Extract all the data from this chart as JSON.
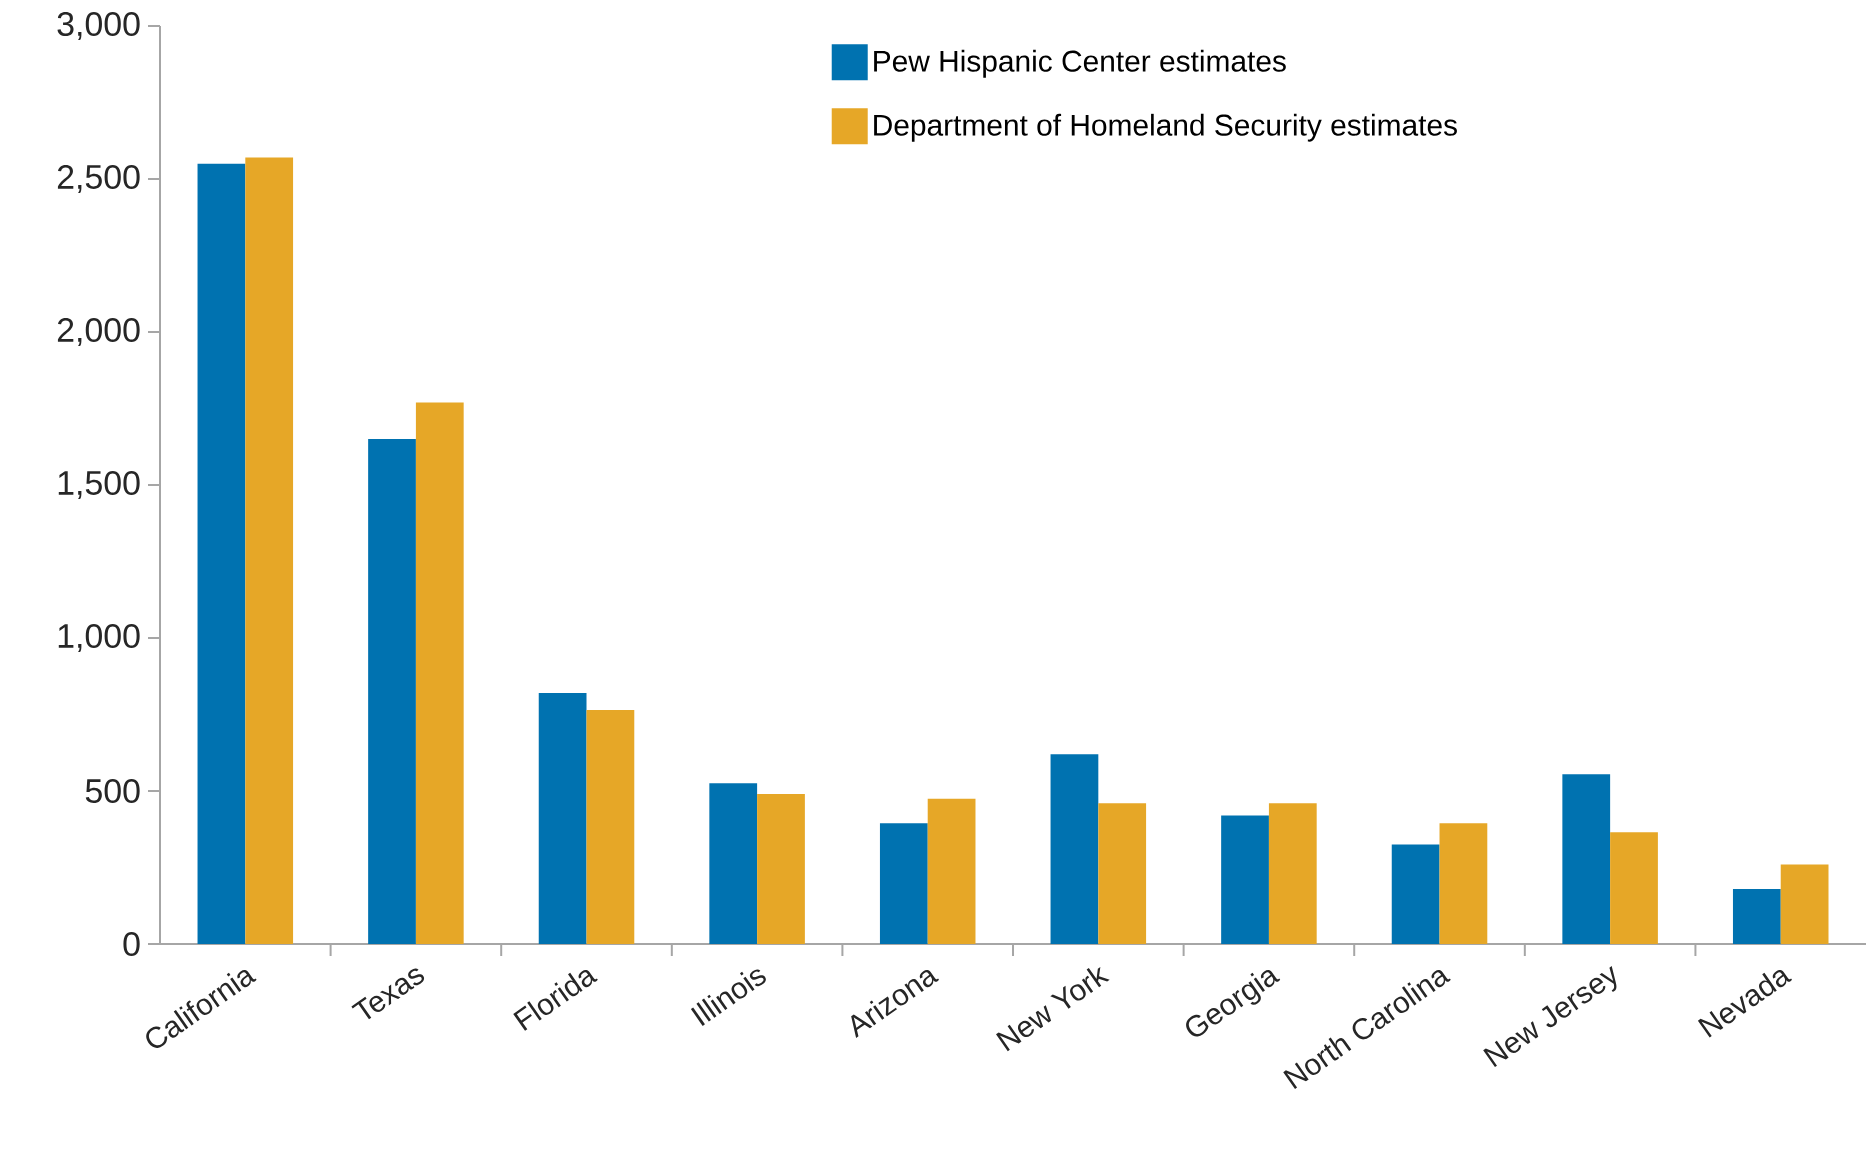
{
  "chart_data": {
    "type": "bar",
    "categories": [
      "California",
      "Texas",
      "Florida",
      "Illinois",
      "Arizona",
      "New York",
      "Georgia",
      "North Carolina",
      "New Jersey",
      "Nevada"
    ],
    "series": [
      {
        "name": "Pew Hispanic Center estimates",
        "color": "#0072b0",
        "values": [
          2550,
          1650,
          820,
          525,
          395,
          620,
          420,
          325,
          555,
          180
        ]
      },
      {
        "name": "Department of Homeland Security estimates",
        "color": "#e6a727",
        "values": [
          2570,
          1770,
          765,
          490,
          475,
          460,
          460,
          395,
          365,
          260
        ]
      }
    ],
    "ylim": [
      0,
      3000
    ],
    "yticks": [
      {
        "value": 0,
        "label": "0"
      },
      {
        "value": 500,
        "label": "500"
      },
      {
        "value": 1000,
        "label": "1,000"
      },
      {
        "value": 1500,
        "label": "1,500"
      },
      {
        "value": 2000,
        "label": "2,000"
      },
      {
        "value": 2500,
        "label": "2,500"
      },
      {
        "value": 3000,
        "label": "3,000"
      }
    ],
    "legend": "top right",
    "grid": false
  }
}
